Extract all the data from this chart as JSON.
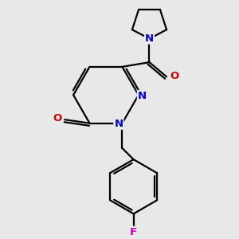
{
  "background_color": "#e8e8e8",
  "atom_color_N": "#0000cc",
  "atom_color_O": "#cc0000",
  "atom_color_F": "#cc00aa",
  "bond_color": "#000000",
  "bond_width": 1.6,
  "dbo": 0.055,
  "figsize": [
    3.0,
    3.0
  ],
  "dpi": 100,
  "xlim": [
    -2.2,
    2.2
  ],
  "ylim": [
    -2.8,
    2.2
  ]
}
